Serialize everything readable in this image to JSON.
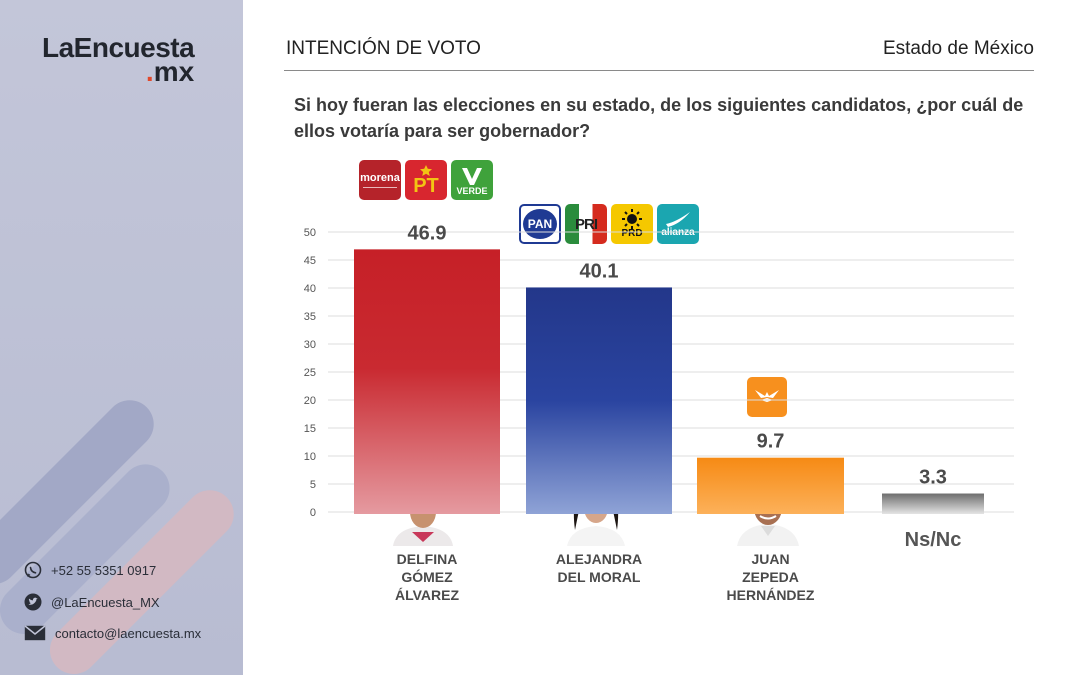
{
  "brand": {
    "name_line1": "LaEncuesta",
    "name_line2": ".mx"
  },
  "header": {
    "title": "INTENCIÓN DE VOTO",
    "region": "Estado de México"
  },
  "question": "Si hoy fueran las elecciones en su estado, de los siguientes candidatos, ¿por cuál de ellos votaría para ser gobernador?",
  "contacts": [
    {
      "icon": "whatsapp-icon",
      "text": "+52 55 5351 0917"
    },
    {
      "icon": "twitter-icon",
      "text": "@LaEncuesta_MX"
    },
    {
      "icon": "mail-icon",
      "text": "contacto@laencuesta.mx"
    }
  ],
  "party_logos": {
    "morena": "morena",
    "pt": "PT",
    "verde": "VERDE",
    "pan": "PAN",
    "pri": "PRI",
    "prd": "PRD",
    "alianza": "alianza"
  },
  "chart_data": {
    "type": "bar",
    "categories": [
      [
        "DELFINA",
        "GÓMEZ",
        "ÁLVAREZ"
      ],
      [
        "ALEJANDRA",
        "DEL MORAL"
      ],
      [
        "JUAN",
        "ZEPEDA",
        "HERNÁNDEZ"
      ],
      [
        "Ns/Nc"
      ]
    ],
    "values": [
      46.9,
      40.1,
      9.7,
      3.3
    ],
    "value_labels": [
      "46.9",
      "40.1",
      "9.7",
      "3.3"
    ],
    "ylim": [
      0,
      50
    ],
    "yticks": [
      0,
      5,
      10,
      15,
      20,
      25,
      30,
      35,
      40,
      45,
      50
    ],
    "grid": true,
    "colors": [
      "#c62027",
      "#253a8a",
      "#f7901e",
      "#8c8c8c"
    ]
  }
}
